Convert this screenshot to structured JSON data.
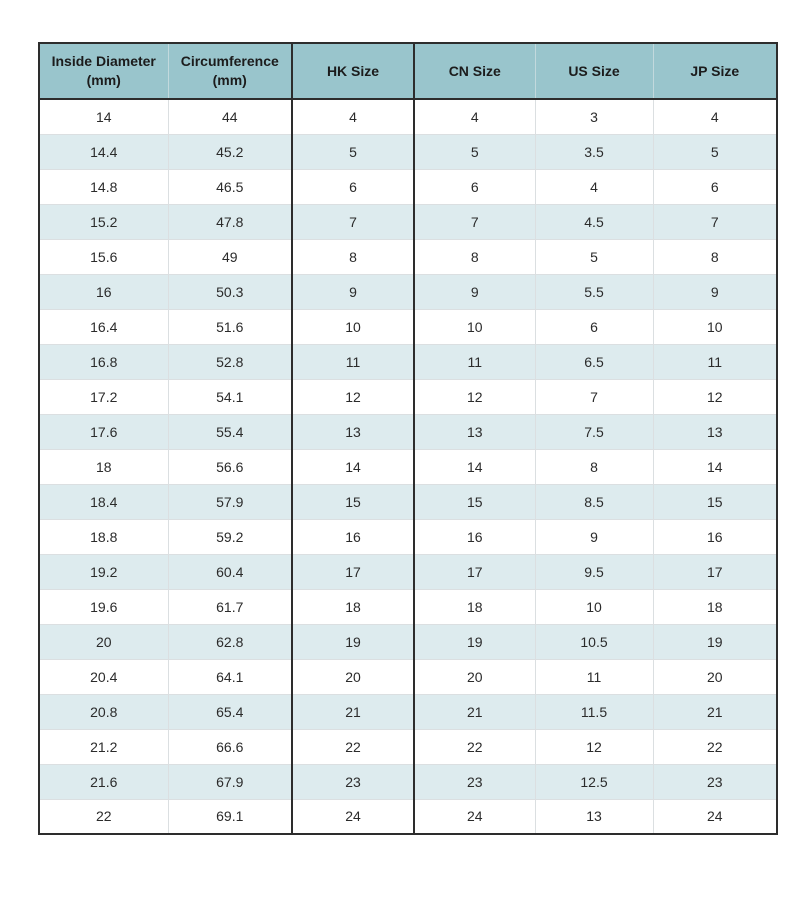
{
  "chart_data": {
    "type": "table",
    "title": "",
    "columns": [
      "Inside Diameter (mm)",
      "Circumference (mm)",
      "HK Size",
      "CN Size",
      "US Size",
      "JP Size"
    ],
    "rows": [
      [
        "14",
        "44",
        "4",
        "4",
        "3",
        "4"
      ],
      [
        "14.4",
        "45.2",
        "5",
        "5",
        "3.5",
        "5"
      ],
      [
        "14.8",
        "46.5",
        "6",
        "6",
        "4",
        "6"
      ],
      [
        "15.2",
        "47.8",
        "7",
        "7",
        "4.5",
        "7"
      ],
      [
        "15.6",
        "49",
        "8",
        "8",
        "5",
        "8"
      ],
      [
        "16",
        "50.3",
        "9",
        "9",
        "5.5",
        "9"
      ],
      [
        "16.4",
        "51.6",
        "10",
        "10",
        "6",
        "10"
      ],
      [
        "16.8",
        "52.8",
        "11",
        "11",
        "6.5",
        "11"
      ],
      [
        "17.2",
        "54.1",
        "12",
        "12",
        "7",
        "12"
      ],
      [
        "17.6",
        "55.4",
        "13",
        "13",
        "7.5",
        "13"
      ],
      [
        "18",
        "56.6",
        "14",
        "14",
        "8",
        "14"
      ],
      [
        "18.4",
        "57.9",
        "15",
        "15",
        "8.5",
        "15"
      ],
      [
        "18.8",
        "59.2",
        "16",
        "16",
        "9",
        "16"
      ],
      [
        "19.2",
        "60.4",
        "17",
        "17",
        "9.5",
        "17"
      ],
      [
        "19.6",
        "61.7",
        "18",
        "18",
        "10",
        "18"
      ],
      [
        "20",
        "62.8",
        "19",
        "19",
        "10.5",
        "19"
      ],
      [
        "20.4",
        "64.1",
        "20",
        "20",
        "11",
        "20"
      ],
      [
        "20.8",
        "65.4",
        "21",
        "21",
        "11.5",
        "21"
      ],
      [
        "21.2",
        "66.6",
        "22",
        "22",
        "12",
        "22"
      ],
      [
        "21.6",
        "67.9",
        "23",
        "23",
        "12.5",
        "23"
      ],
      [
        "22",
        "69.1",
        "24",
        "24",
        "13",
        "24"
      ]
    ],
    "layout": {
      "alternating_row_shading": true,
      "shaded_rows": "even (2nd, 4th, ...)"
    }
  },
  "colors": {
    "header_bg": "#99c5cc",
    "alt_row_bg": "#ddebee",
    "dark_border": "#2d2d2d",
    "light_border": "#dbdfe1",
    "text": "#2b2b2b"
  }
}
